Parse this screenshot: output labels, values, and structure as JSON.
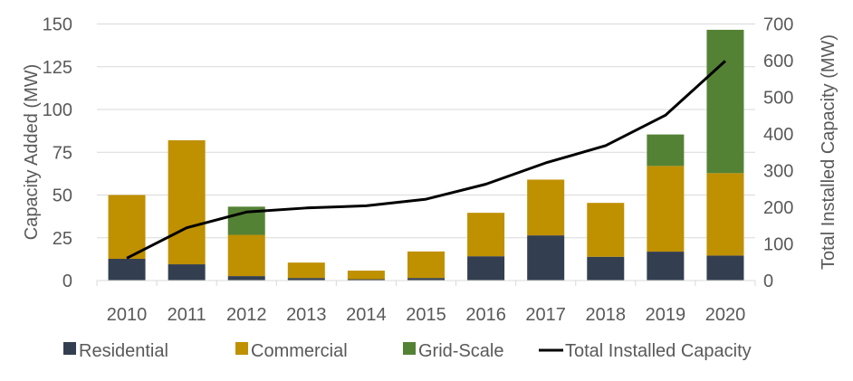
{
  "chart_data": {
    "type": "bar",
    "stacked": true,
    "categories": [
      "2010",
      "2011",
      "2012",
      "2013",
      "2014",
      "2015",
      "2016",
      "2017",
      "2018",
      "2019",
      "2020"
    ],
    "series": [
      {
        "name": "Residential",
        "axis": "left",
        "color": "#333f50",
        "values": [
          12.7,
          9.5,
          2.6,
          1.5,
          0.8,
          1.5,
          14.2,
          26.4,
          13.9,
          16.9,
          14.6
        ]
      },
      {
        "name": "Commercial",
        "axis": "left",
        "color": "#bf9000",
        "values": [
          37.3,
          72.5,
          24.1,
          9.0,
          5.0,
          15.5,
          25.4,
          32.6,
          31.5,
          50.1,
          48.2
        ]
      },
      {
        "name": "Grid-Scale",
        "axis": "left",
        "color": "#548235",
        "values": [
          0,
          0,
          16.5,
          0,
          0,
          0,
          0,
          0,
          0,
          18.4,
          83.8
        ]
      },
      {
        "name": "Total Installed Capacity",
        "type": "line",
        "axis": "right",
        "color": "#000000",
        "values": [
          61,
          144,
          187,
          198,
          204,
          222,
          263,
          321,
          368,
          451,
          599
        ]
      }
    ],
    "ylabel": "Capacity Added (MW)",
    "y2label": "Total Installed Capacity (MW)",
    "ylim": [
      0,
      150
    ],
    "yticks": [
      0,
      25,
      50,
      75,
      100,
      125,
      150
    ],
    "y2lim": [
      0,
      700
    ],
    "y2ticks": [
      0,
      100,
      200,
      300,
      400,
      500,
      600,
      700
    ],
    "grid": true,
    "legend": "bottom"
  }
}
